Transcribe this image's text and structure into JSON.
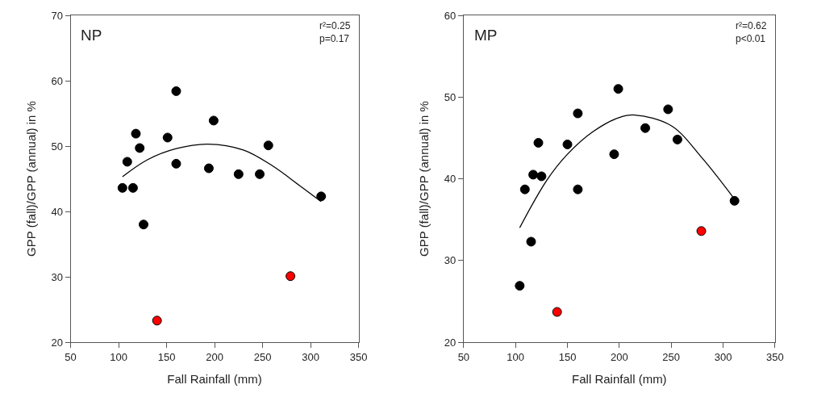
{
  "chart_data": [
    {
      "type": "scatter",
      "xlabel": "Fall Rainfall (mm)",
      "ylabel": "GPP (fall)/GPP (annual) in %",
      "annotations": [
        "NP",
        "r²=0.25\np=0.17"
      ],
      "xlim": [
        50,
        350
      ],
      "xticks": [
        50,
        100,
        150,
        200,
        250,
        300,
        350
      ],
      "ylim": [
        20,
        70
      ],
      "yticks": [
        20,
        30,
        40,
        50,
        60,
        70
      ],
      "series": [
        {
          "marker": "circle",
          "color": "#000000",
          "x": [
            104,
            109,
            115,
            118,
            122,
            126,
            151,
            160,
            160,
            194,
            199,
            225,
            247,
            256,
            311
          ],
          "values": [
            43.6,
            47.6,
            43.6,
            51.9,
            49.7,
            38.0,
            51.3,
            58.4,
            47.3,
            46.6,
            53.9,
            45.7,
            45.7,
            50.1,
            42.3
          ]
        },
        {
          "marker": "circle",
          "color": "#ff0000",
          "x": [
            140,
            279
          ],
          "values": [
            23.3,
            30.1
          ]
        },
        {
          "type": "line",
          "marker": "none",
          "color": "#000000",
          "x": [
            104,
            130,
            160,
            193,
            230,
            260,
            290,
            311
          ],
          "values": [
            45.3,
            47.9,
            49.6,
            50.3,
            49.4,
            47.0,
            43.8,
            41.5
          ]
        }
      ]
    },
    {
      "type": "scatter",
      "xlabel": "Fall Rainfall (mm)",
      "ylabel": "GPP (fall)/GPP (annual) in %",
      "annotations": [
        "MP",
        "r²=0.62\np<0.01"
      ],
      "xlim": [
        50,
        350
      ],
      "xticks": [
        50,
        100,
        150,
        200,
        250,
        300,
        350
      ],
      "ylim": [
        20,
        60
      ],
      "yticks": [
        20,
        30,
        40,
        50,
        60
      ],
      "series": [
        {
          "marker": "circle",
          "color": "#000000",
          "x": [
            104,
            109,
            115,
            117,
            122,
            125,
            150,
            160,
            160,
            195,
            199,
            225,
            247,
            256,
            311
          ],
          "values": [
            26.9,
            38.7,
            32.3,
            40.5,
            44.4,
            40.3,
            44.2,
            48.0,
            38.7,
            43.0,
            51.0,
            46.2,
            48.5,
            44.8,
            37.3
          ]
        },
        {
          "marker": "circle",
          "color": "#ff0000",
          "x": [
            140,
            279
          ],
          "values": [
            23.7,
            33.6
          ]
        },
        {
          "type": "line",
          "marker": "none",
          "color": "#000000",
          "x": [
            104,
            130,
            150,
            175,
            200,
            215,
            250,
            280,
            311
          ],
          "values": [
            34.0,
            39.8,
            43.0,
            45.8,
            47.5,
            47.8,
            46.5,
            42.5,
            37.5
          ]
        }
      ]
    }
  ]
}
